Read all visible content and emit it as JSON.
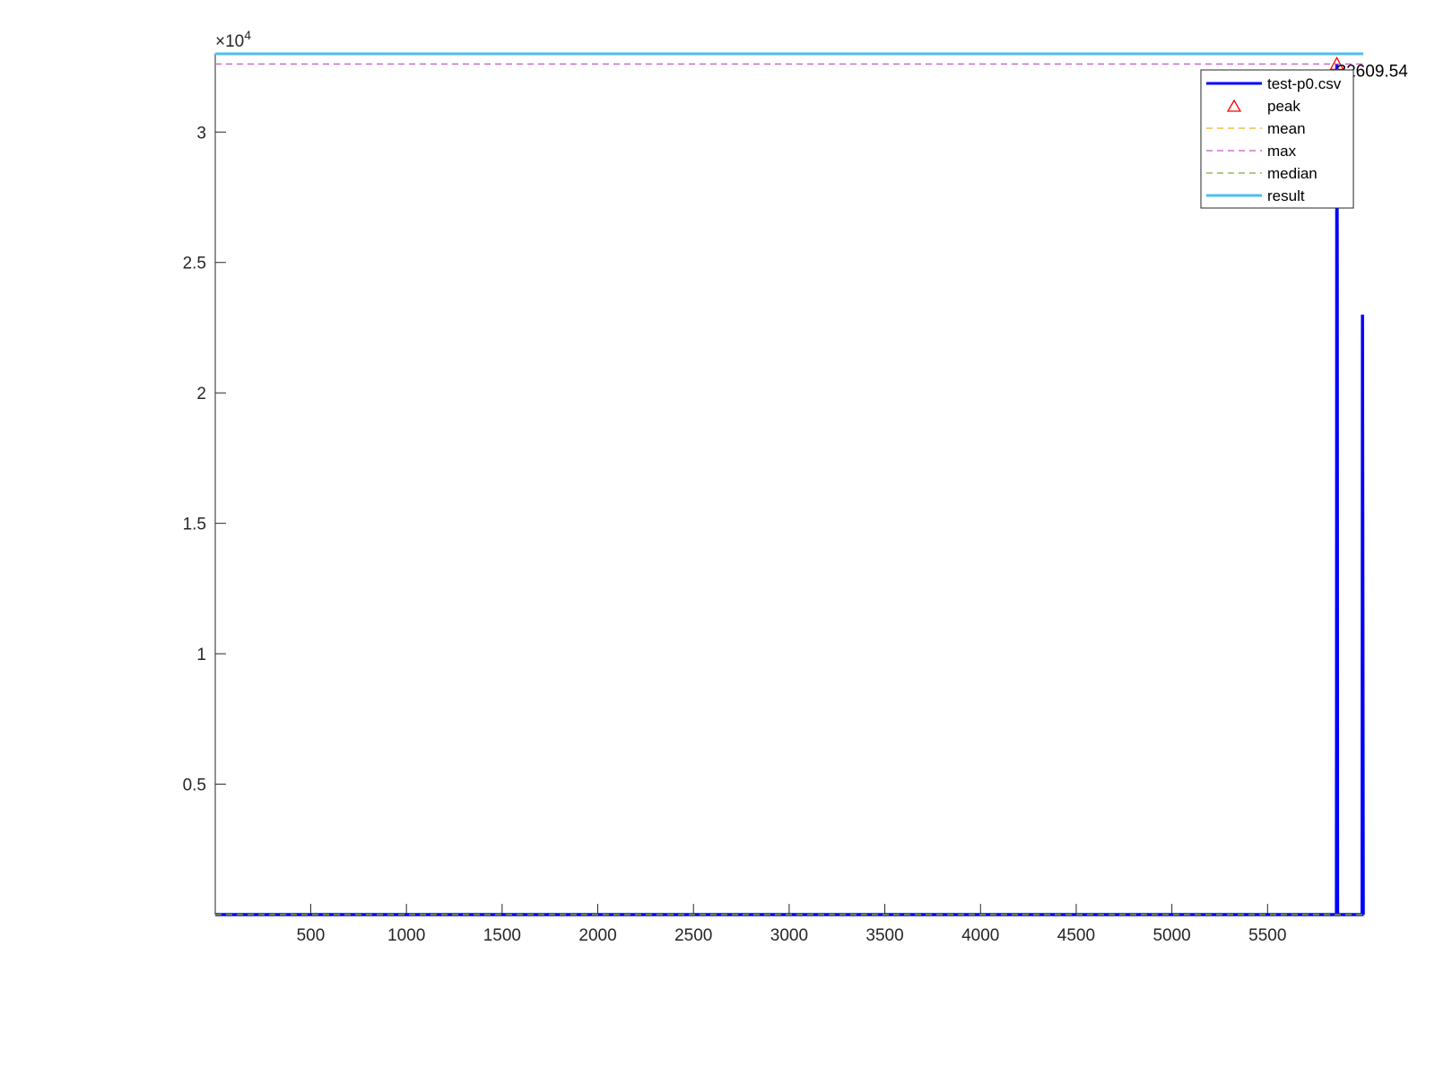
{
  "chart_data": {
    "type": "line",
    "title": "",
    "xlabel": "",
    "ylabel": "",
    "xlim": [
      1,
      6000
    ],
    "ylim": [
      0,
      33000
    ],
    "y_exponent_label": "×10",
    "y_exponent_power": "4",
    "x_ticks": [
      500,
      1000,
      1500,
      2000,
      2500,
      3000,
      3500,
      4000,
      4500,
      5000,
      5500
    ],
    "x_tick_labels": [
      "500",
      "1000",
      "1500",
      "2000",
      "2500",
      "3000",
      "3500",
      "4000",
      "4500",
      "5000",
      "5500"
    ],
    "y_ticks": [
      5000,
      10000,
      15000,
      20000,
      25000,
      30000
    ],
    "y_tick_labels": [
      "0.5",
      "1",
      "1.5",
      "2",
      "2.5",
      "3"
    ],
    "grid": false,
    "legend_placement": "top-right",
    "series": [
      {
        "name": "test-p0.csv",
        "kind": "line",
        "color": "#0000ff",
        "x": [
          1,
          5860,
          5862,
          5864,
          5866,
          5994,
          5996,
          5998,
          6000
        ],
        "y": [
          0,
          0,
          32609.54,
          25000,
          0,
          0,
          23000,
          12000,
          0
        ]
      },
      {
        "name": "peak",
        "kind": "marker",
        "color": "#ff0000",
        "x": [
          5862
        ],
        "y": [
          32609.54
        ]
      },
      {
        "name": "mean",
        "kind": "hline",
        "color": "#edb120",
        "y": 0
      },
      {
        "name": "max",
        "kind": "hline",
        "color": "#c159c4",
        "y": 32609.54
      },
      {
        "name": "median",
        "kind": "hline",
        "color": "#77ac30",
        "y": 0
      },
      {
        "name": "result",
        "kind": "hline",
        "color": "#4dbeee",
        "y": 33000
      }
    ],
    "annotations": [
      {
        "text": "32609.54",
        "x": 5862,
        "y": 32609.54
      }
    ]
  }
}
